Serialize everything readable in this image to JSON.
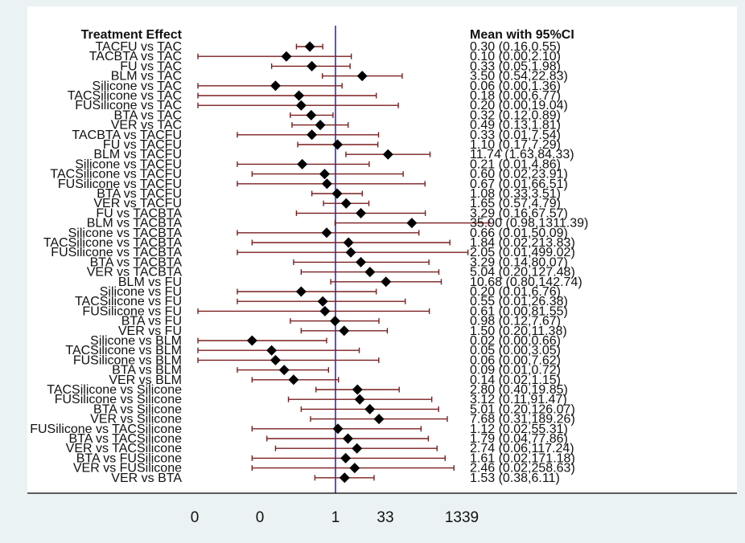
{
  "chart_data": {
    "type": "forest",
    "header_left": "Treatment Effect",
    "header_right": "Mean with 95%CI",
    "x_scale": "log",
    "reference_line": 1,
    "x_tick_labels": [
      "0",
      "0",
      "1",
      "33",
      "1339"
    ],
    "x_tick_values": [
      0.001,
      0.03,
      1,
      33,
      1339
    ],
    "colors": {
      "reference_line": "#1f1fbf",
      "ci_line": "#7a1f1f",
      "marker": "#000000"
    },
    "rows": [
      {
        "label": "TACFU vs TAC",
        "mean": 0.3,
        "lo": 0.16,
        "hi": 0.55,
        "text": "0.30 (0.16,0.55)"
      },
      {
        "label": "TACBTA vs TAC",
        "mean": 0.1,
        "lo": 0.0,
        "hi": 2.1,
        "text": "0.10 (0.00,2.10)"
      },
      {
        "label": "FU vs TAC",
        "mean": 0.33,
        "lo": 0.05,
        "hi": 1.98,
        "text": "0.33 (0.05,1.98)"
      },
      {
        "label": "BLM vs TAC",
        "mean": 3.5,
        "lo": 0.54,
        "hi": 22.83,
        "text": "3.50 (0.54,22.83)"
      },
      {
        "label": "Silicone vs TAC",
        "mean": 0.06,
        "lo": 0.0,
        "hi": 1.36,
        "text": "0.06 (0.00,1.36)"
      },
      {
        "label": "TACSilicone vs TAC",
        "mean": 0.18,
        "lo": 0.0,
        "hi": 6.77,
        "text": "0.18 (0.00,6.77)"
      },
      {
        "label": "FUSilicone vs TAC",
        "mean": 0.2,
        "lo": 0.0,
        "hi": 19.04,
        "text": "0.20 (0.00,19.04)"
      },
      {
        "label": "BTA vs TAC",
        "mean": 0.32,
        "lo": 0.12,
        "hi": 0.89,
        "text": "0.32 (0.12,0.89)"
      },
      {
        "label": "VER vs TAC",
        "mean": 0.49,
        "lo": 0.13,
        "hi": 1.81,
        "text": "0.49 (0.13,1.81)"
      },
      {
        "label": "TACBTA vs TACFU",
        "mean": 0.33,
        "lo": 0.01,
        "hi": 7.54,
        "text": "0.33 (0.01,7.54)"
      },
      {
        "label": "FU vs TACFU",
        "mean": 1.1,
        "lo": 0.17,
        "hi": 7.29,
        "text": "1.10 (0.17,7.29)"
      },
      {
        "label": "BLM vs TACFU",
        "mean": 11.74,
        "lo": 1.63,
        "hi": 84.33,
        "text": "11.74 (1.63,84.33)"
      },
      {
        "label": "Silicone vs TACFU",
        "mean": 0.21,
        "lo": 0.01,
        "hi": 4.86,
        "text": "0.21 (0.01,4.86)"
      },
      {
        "label": "TACSilicone vs TACFU",
        "mean": 0.6,
        "lo": 0.02,
        "hi": 23.91,
        "text": "0.60 (0.02,23.91)"
      },
      {
        "label": "FUSilicone vs TACFU",
        "mean": 0.67,
        "lo": 0.01,
        "hi": 66.51,
        "text": "0.67 (0.01,66.51)"
      },
      {
        "label": "BTA vs TACFU",
        "mean": 1.08,
        "lo": 0.33,
        "hi": 3.51,
        "text": "1.08 (0.33,3.51)"
      },
      {
        "label": "VER vs TACFU",
        "mean": 1.65,
        "lo": 0.57,
        "hi": 4.79,
        "text": "1.65 (0.57,4.79)"
      },
      {
        "label": "FU vs TACBTA",
        "mean": 3.29,
        "lo": 0.16,
        "hi": 67.57,
        "text": "3.29 (0.16,67.57)"
      },
      {
        "label": "BLM vs TACBTA",
        "mean": 35.9,
        "lo": 0.98,
        "hi": 1311.39,
        "text": "35.90 (0.98,1311.39)"
      },
      {
        "label": "Silicone vs TACBTA",
        "mean": 0.66,
        "lo": 0.01,
        "hi": 50.09,
        "text": "0.66 (0.01,50.09)"
      },
      {
        "label": "TACSilicone vs TACBTA",
        "mean": 1.84,
        "lo": 0.02,
        "hi": 213.83,
        "text": "1.84 (0.02,213.83)"
      },
      {
        "label": "FUSilicone vs TACBTA",
        "mean": 2.05,
        "lo": 0.01,
        "hi": 499.02,
        "text": "2.05 (0.01,499.02)"
      },
      {
        "label": "BTA vs TACBTA",
        "mean": 3.29,
        "lo": 0.14,
        "hi": 80.07,
        "text": "3.29 (0.14,80.07)"
      },
      {
        "label": "VER vs TACBTA",
        "mean": 5.04,
        "lo": 0.2,
        "hi": 127.48,
        "text": "5.04 (0.20,127.48)"
      },
      {
        "label": "BLM vs FU",
        "mean": 10.68,
        "lo": 0.8,
        "hi": 142.74,
        "text": "10.68 (0.80,142.74)"
      },
      {
        "label": "Silicone vs FU",
        "mean": 0.2,
        "lo": 0.01,
        "hi": 6.76,
        "text": "0.20 (0.01,6.76)"
      },
      {
        "label": "TACSilicone vs FU",
        "mean": 0.55,
        "lo": 0.01,
        "hi": 26.38,
        "text": "0.55 (0.01,26.38)"
      },
      {
        "label": "FUSilicone vs FU",
        "mean": 0.61,
        "lo": 0.0,
        "hi": 81.55,
        "text": "0.61 (0.00,81.55)"
      },
      {
        "label": "BTA vs FU",
        "mean": 0.98,
        "lo": 0.12,
        "hi": 7.67,
        "text": "0.98 (0.12,7.67)"
      },
      {
        "label": "VER vs FU",
        "mean": 1.5,
        "lo": 0.2,
        "hi": 11.38,
        "text": "1.50 (0.20,11.38)"
      },
      {
        "label": "Silicone vs BLM",
        "mean": 0.02,
        "lo": 0.0,
        "hi": 0.66,
        "text": "0.02 (0.00,0.66)"
      },
      {
        "label": "TACSilicone vs BLM",
        "mean": 0.05,
        "lo": 0.0,
        "hi": 3.05,
        "text": "0.05 (0.00,3.05)"
      },
      {
        "label": "FUSilicone vs BLM",
        "mean": 0.06,
        "lo": 0.0,
        "hi": 7.62,
        "text": "0.06 (0.00,7.62)"
      },
      {
        "label": "BTA vs BLM",
        "mean": 0.09,
        "lo": 0.01,
        "hi": 0.72,
        "text": "0.09 (0.01,0.72)"
      },
      {
        "label": "VER vs BLM",
        "mean": 0.14,
        "lo": 0.02,
        "hi": 1.15,
        "text": "0.14 (0.02,1.15)"
      },
      {
        "label": "TACSilicone vs Silicone",
        "mean": 2.8,
        "lo": 0.4,
        "hi": 19.85,
        "text": "2.80 (0.40,19.85)"
      },
      {
        "label": "FUSilicone vs Silicone",
        "mean": 3.12,
        "lo": 0.11,
        "hi": 91.47,
        "text": "3.12 (0.11,91.47)"
      },
      {
        "label": "BTA vs Silicone",
        "mean": 5.01,
        "lo": 0.2,
        "hi": 126.07,
        "text": "5.01 (0.20,126.07)"
      },
      {
        "label": "VER vs Silicone",
        "mean": 7.68,
        "lo": 0.31,
        "hi": 189.26,
        "text": "7.68 (0.31,189.26)"
      },
      {
        "label": "FUSilicone vs TACSilicone",
        "mean": 1.12,
        "lo": 0.02,
        "hi": 55.31,
        "text": "1.12 (0.02,55.31)"
      },
      {
        "label": "BTA vs TACSilicone",
        "mean": 1.79,
        "lo": 0.04,
        "hi": 77.86,
        "text": "1.79 (0.04,77.86)"
      },
      {
        "label": "VER vs TACSilicone",
        "mean": 2.74,
        "lo": 0.06,
        "hi": 117.24,
        "text": "2.74 (0.06,117.24)"
      },
      {
        "label": "BTA vs FUSilicone",
        "mean": 1.61,
        "lo": 0.02,
        "hi": 171.18,
        "text": "1.61 (0.02,171.18)"
      },
      {
        "label": "VER vs FUSilicone",
        "mean": 2.46,
        "lo": 0.02,
        "hi": 258.63,
        "text": "2.46 (0.02,258.63)"
      },
      {
        "label": "VER vs BTA",
        "mean": 1.53,
        "lo": 0.38,
        "hi": 6.11,
        "text": "1.53 (0.38,6.11)"
      }
    ]
  }
}
